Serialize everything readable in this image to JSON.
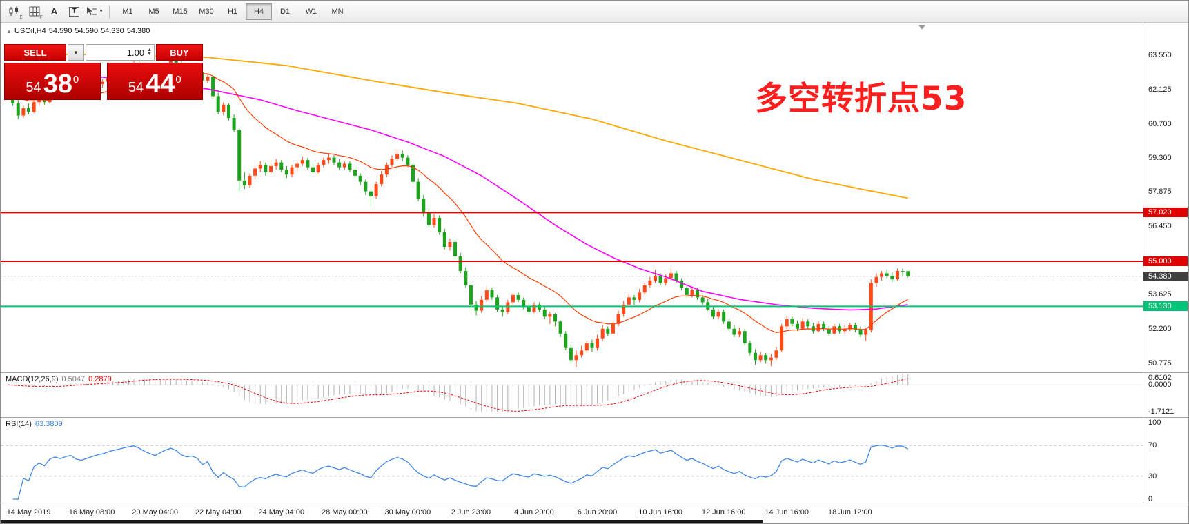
{
  "toolbar": {
    "icon_buttons": [
      {
        "name": "chart-type",
        "icon": "candles",
        "sub": "E"
      },
      {
        "name": "grid-toggle",
        "icon": "grid",
        "sub": "F"
      },
      {
        "name": "label-tool",
        "icon": "A",
        "sub": ""
      },
      {
        "name": "text-tool",
        "icon": "T",
        "sub": ""
      },
      {
        "name": "draw-tool",
        "icon": "cursor",
        "sub": ""
      }
    ],
    "timeframes": [
      "M1",
      "M5",
      "M15",
      "M30",
      "H1",
      "H4",
      "D1",
      "W1",
      "MN"
    ],
    "active_timeframe": "H4"
  },
  "chart_header": {
    "collapse_icon": "▲",
    "symbol": "USOil,H4",
    "open": "54.590",
    "high": "54.590",
    "low": "54.330",
    "close": "54.380"
  },
  "trade_panel": {
    "sell_label": "SELL",
    "buy_label": "BUY",
    "volume": "1.00",
    "sell_price": {
      "whole": "54",
      "pips": "38",
      "sup": "0"
    },
    "buy_price": {
      "whole": "54",
      "pips": "44",
      "sup": "0"
    }
  },
  "annotation": {
    "text": "多空转折点53",
    "color": "#ff1e1e"
  },
  "price_axis": {
    "ticks": [
      {
        "text": "63.550",
        "value": 63.55
      },
      {
        "text": "62.125",
        "value": 62.125
      },
      {
        "text": "60.700",
        "value": 60.7
      },
      {
        "text": "59.300",
        "value": 59.3
      },
      {
        "text": "57.875",
        "value": 57.875
      },
      {
        "text": "56.450",
        "value": 56.45
      },
      {
        "text": "53.625",
        "value": 53.625
      },
      {
        "text": "52.200",
        "value": 52.2
      },
      {
        "text": "50.775",
        "value": 50.775
      }
    ],
    "badges": [
      {
        "text": "57.020",
        "value": 57.02,
        "bg": "#e00000",
        "fg": "#ffffff"
      },
      {
        "text": "55.000",
        "value": 55.0,
        "bg": "#e00000",
        "fg": "#ffffff"
      },
      {
        "text": "54.380",
        "value": 54.38,
        "bg": "#3f3f3f",
        "fg": "#ffffff"
      },
      {
        "text": "53.130",
        "value": 53.13,
        "bg": "#00c478",
        "fg": "#ffffff"
      }
    ]
  },
  "macd_panel": {
    "label": "MACD(12,26,9)",
    "value": "0.5047",
    "signal_value": "0.2879",
    "axis_labels": [
      "0.6102",
      "0.0000",
      "-1.7121"
    ]
  },
  "rsi_panel": {
    "label": "RSI(14)",
    "value": "63.3809",
    "axis_labels": [
      "100",
      "70",
      "30",
      "0"
    ]
  },
  "time_axis": {
    "items": [
      {
        "label": "14 May 2019",
        "bar": 4
      },
      {
        "label": "16 May 08:00",
        "bar": 16
      },
      {
        "label": "20 May 04:00",
        "bar": 28
      },
      {
        "label": "22 May 04:00",
        "bar": 40
      },
      {
        "label": "24 May 04:00",
        "bar": 52
      },
      {
        "label": "28 May 00:00",
        "bar": 64
      },
      {
        "label": "30 May 00:00",
        "bar": 76
      },
      {
        "label": "2 Jun 23:00",
        "bar": 88
      },
      {
        "label": "4 Jun 20:00",
        "bar": 100
      },
      {
        "label": "6 Jun 20:00",
        "bar": 112
      },
      {
        "label": "10 Jun 16:00",
        "bar": 124
      },
      {
        "label": "12 Jun 16:00",
        "bar": 136
      },
      {
        "label": "14 Jun 16:00",
        "bar": 148
      },
      {
        "label": "18 Jun 12:00",
        "bar": 160
      }
    ]
  },
  "chart_data": {
    "type": "candlestick",
    "title": "USOil H4 with MACD(12,26,9) and RSI(14)",
    "symbol": "USOil",
    "timeframe": "H4",
    "up_color": "#ff4a19",
    "down_color": "#1ea31e",
    "y_range": [
      50.39,
      64.87
    ],
    "hlines": [
      {
        "price": 57.02,
        "color": "#e00000",
        "width": 2
      },
      {
        "price": 55.0,
        "color": "#e00000",
        "width": 2
      },
      {
        "price": 53.13,
        "color": "#00c478",
        "width": 2
      },
      {
        "price": 54.38,
        "color": "#aaaaaa",
        "width": 1,
        "dash": true
      }
    ],
    "candles": [
      [
        61.95,
        62.2,
        61.75,
        61.85
      ],
      [
        61.85,
        62.0,
        61.45,
        61.55
      ],
      [
        61.55,
        61.7,
        60.9,
        61.05
      ],
      [
        61.05,
        61.45,
        60.95,
        61.35
      ],
      [
        61.35,
        61.55,
        61.1,
        61.2
      ],
      [
        61.2,
        61.7,
        61.15,
        61.6
      ],
      [
        61.6,
        61.85,
        61.45,
        61.75
      ],
      [
        61.75,
        61.9,
        61.5,
        61.6
      ],
      [
        61.6,
        62.05,
        61.55,
        61.95
      ],
      [
        61.95,
        62.2,
        61.8,
        62.1
      ],
      [
        62.1,
        62.25,
        61.9,
        62.0
      ],
      [
        62.0,
        62.2,
        61.85,
        62.15
      ],
      [
        62.15,
        62.35,
        62.0,
        62.25
      ],
      [
        62.25,
        62.3,
        61.9,
        62.0
      ],
      [
        62.0,
        62.15,
        61.8,
        61.9
      ],
      [
        61.9,
        62.1,
        61.75,
        62.05
      ],
      [
        62.05,
        62.3,
        61.95,
        62.2
      ],
      [
        62.2,
        62.45,
        62.1,
        62.35
      ],
      [
        62.35,
        62.55,
        62.2,
        62.45
      ],
      [
        62.45,
        62.7,
        62.35,
        62.6
      ],
      [
        62.6,
        62.85,
        62.5,
        62.75
      ],
      [
        62.75,
        62.95,
        62.6,
        62.85
      ],
      [
        62.85,
        63.1,
        62.75,
        63.0
      ],
      [
        63.0,
        63.2,
        62.85,
        63.1
      ],
      [
        63.1,
        63.3,
        62.95,
        63.2
      ],
      [
        63.2,
        63.35,
        63.0,
        63.1
      ],
      [
        63.1,
        63.25,
        62.85,
        62.95
      ],
      [
        62.95,
        63.1,
        62.75,
        62.85
      ],
      [
        62.85,
        63.0,
        62.65,
        62.75
      ],
      [
        62.75,
        63.05,
        62.7,
        62.95
      ],
      [
        62.95,
        63.25,
        62.85,
        63.15
      ],
      [
        63.15,
        63.4,
        63.05,
        63.3
      ],
      [
        63.3,
        63.45,
        63.1,
        63.2
      ],
      [
        63.2,
        63.3,
        62.9,
        63.0
      ],
      [
        63.0,
        63.15,
        62.8,
        62.9
      ],
      [
        62.9,
        63.05,
        62.7,
        62.95
      ],
      [
        62.95,
        63.1,
        62.75,
        62.85
      ],
      [
        62.85,
        62.95,
        62.4,
        62.5
      ],
      [
        62.5,
        62.75,
        62.4,
        62.65
      ],
      [
        62.65,
        62.7,
        61.75,
        61.85
      ],
      [
        61.85,
        62.0,
        61.1,
        61.2
      ],
      [
        61.2,
        61.6,
        61.05,
        61.5
      ],
      [
        61.5,
        61.55,
        60.85,
        60.95
      ],
      [
        60.95,
        61.1,
        60.35,
        60.45
      ],
      [
        60.45,
        60.55,
        57.9,
        58.35
      ],
      [
        58.35,
        58.7,
        58.0,
        58.15
      ],
      [
        58.15,
        58.65,
        58.05,
        58.55
      ],
      [
        58.55,
        58.95,
        58.4,
        58.85
      ],
      [
        58.85,
        59.15,
        58.7,
        59.0
      ],
      [
        59.0,
        59.1,
        58.55,
        58.7
      ],
      [
        58.7,
        59.05,
        58.6,
        58.95
      ],
      [
        58.95,
        59.25,
        58.8,
        59.1
      ],
      [
        59.1,
        59.2,
        58.7,
        58.8
      ],
      [
        58.8,
        58.95,
        58.45,
        58.6
      ],
      [
        58.6,
        59.0,
        58.5,
        58.9
      ],
      [
        58.9,
        59.15,
        58.75,
        59.05
      ],
      [
        59.05,
        59.35,
        58.95,
        59.2
      ],
      [
        59.2,
        59.3,
        58.8,
        58.9
      ],
      [
        58.9,
        59.05,
        58.6,
        58.7
      ],
      [
        58.7,
        59.1,
        58.65,
        59.0
      ],
      [
        59.0,
        59.3,
        58.9,
        59.2
      ],
      [
        59.2,
        59.45,
        59.05,
        59.3
      ],
      [
        59.3,
        59.4,
        59.0,
        59.1
      ],
      [
        59.1,
        59.25,
        58.8,
        58.9
      ],
      [
        58.9,
        59.15,
        58.8,
        59.05
      ],
      [
        59.05,
        59.15,
        58.7,
        58.8
      ],
      [
        58.8,
        58.9,
        58.45,
        58.55
      ],
      [
        58.55,
        58.65,
        58.15,
        58.3
      ],
      [
        58.3,
        58.4,
        57.75,
        57.9
      ],
      [
        57.9,
        58.0,
        57.3,
        57.7
      ],
      [
        57.7,
        58.3,
        57.6,
        58.2
      ],
      [
        58.2,
        58.75,
        58.1,
        58.6
      ],
      [
        58.6,
        59.1,
        58.5,
        59.0
      ],
      [
        59.0,
        59.4,
        58.9,
        59.25
      ],
      [
        59.25,
        59.65,
        59.15,
        59.45
      ],
      [
        59.45,
        59.6,
        59.15,
        59.3
      ],
      [
        59.3,
        59.4,
        58.9,
        59.0
      ],
      [
        59.0,
        59.1,
        58.2,
        58.3
      ],
      [
        58.3,
        58.45,
        57.5,
        57.6
      ],
      [
        57.6,
        57.75,
        56.85,
        57.0
      ],
      [
        57.0,
        57.2,
        56.4,
        56.5
      ],
      [
        56.5,
        56.95,
        56.4,
        56.8
      ],
      [
        56.8,
        56.9,
        56.1,
        56.2
      ],
      [
        56.2,
        56.35,
        55.5,
        55.6
      ],
      [
        55.6,
        55.95,
        55.45,
        55.8
      ],
      [
        55.8,
        55.9,
        55.1,
        55.2
      ],
      [
        55.2,
        55.35,
        54.5,
        54.6
      ],
      [
        54.6,
        54.75,
        53.9,
        54.0
      ],
      [
        54.0,
        54.1,
        52.95,
        53.2
      ],
      [
        53.2,
        53.35,
        52.75,
        52.95
      ],
      [
        52.95,
        53.55,
        52.85,
        53.4
      ],
      [
        53.4,
        53.95,
        53.3,
        53.8
      ],
      [
        53.8,
        53.9,
        53.4,
        53.5
      ],
      [
        53.5,
        53.6,
        52.9,
        53.0
      ],
      [
        53.0,
        53.15,
        52.7,
        52.9
      ],
      [
        52.9,
        53.4,
        52.8,
        53.3
      ],
      [
        53.3,
        53.7,
        53.2,
        53.6
      ],
      [
        53.6,
        53.7,
        53.3,
        53.4
      ],
      [
        53.4,
        53.5,
        53.0,
        53.1
      ],
      [
        53.1,
        53.25,
        52.8,
        52.9
      ],
      [
        52.9,
        53.3,
        52.85,
        53.2
      ],
      [
        53.2,
        53.3,
        52.9,
        53.0
      ],
      [
        53.0,
        53.1,
        52.6,
        52.7
      ],
      [
        52.7,
        52.9,
        52.4,
        52.8
      ],
      [
        52.8,
        52.85,
        52.3,
        52.5
      ],
      [
        52.5,
        52.55,
        51.85,
        52.0
      ],
      [
        52.0,
        52.1,
        51.3,
        51.4
      ],
      [
        51.4,
        51.55,
        50.75,
        50.9
      ],
      [
        50.9,
        51.3,
        50.6,
        51.1
      ],
      [
        51.1,
        51.5,
        51.0,
        51.3
      ],
      [
        51.3,
        51.7,
        51.2,
        51.6
      ],
      [
        51.6,
        51.75,
        51.25,
        51.4
      ],
      [
        51.4,
        51.95,
        51.3,
        51.8
      ],
      [
        51.8,
        52.35,
        51.7,
        52.2
      ],
      [
        52.2,
        52.3,
        51.9,
        52.0
      ],
      [
        52.0,
        52.55,
        51.95,
        52.4
      ],
      [
        52.4,
        52.95,
        52.3,
        52.8
      ],
      [
        52.8,
        53.35,
        52.7,
        53.2
      ],
      [
        53.2,
        53.65,
        53.1,
        53.5
      ],
      [
        53.5,
        53.6,
        53.2,
        53.4
      ],
      [
        53.4,
        53.85,
        53.3,
        53.7
      ],
      [
        53.7,
        54.1,
        53.6,
        54.0
      ],
      [
        54.0,
        54.35,
        53.9,
        54.2
      ],
      [
        54.2,
        54.65,
        54.1,
        54.4
      ],
      [
        54.4,
        54.5,
        54.0,
        54.1
      ],
      [
        54.1,
        54.45,
        54.0,
        54.3
      ],
      [
        54.3,
        54.7,
        54.2,
        54.5
      ],
      [
        54.5,
        54.6,
        54.1,
        54.2
      ],
      [
        54.2,
        54.3,
        53.8,
        53.9
      ],
      [
        53.9,
        54.0,
        53.5,
        53.6
      ],
      [
        53.6,
        53.95,
        53.5,
        53.8
      ],
      [
        53.8,
        53.9,
        53.4,
        53.5
      ],
      [
        53.5,
        53.6,
        53.2,
        53.3
      ],
      [
        53.3,
        53.45,
        52.95,
        53.0
      ],
      [
        53.0,
        53.1,
        52.6,
        52.7
      ],
      [
        52.7,
        53.0,
        52.6,
        52.9
      ],
      [
        52.9,
        53.0,
        52.4,
        52.5
      ],
      [
        52.5,
        52.6,
        52.1,
        52.2
      ],
      [
        52.2,
        52.35,
        51.85,
        51.95
      ],
      [
        51.95,
        52.25,
        51.85,
        52.1
      ],
      [
        52.1,
        52.2,
        51.5,
        51.6
      ],
      [
        51.6,
        51.7,
        51.1,
        51.2
      ],
      [
        51.2,
        51.35,
        50.7,
        50.9
      ],
      [
        50.9,
        51.25,
        50.8,
        51.1
      ],
      [
        51.1,
        51.2,
        50.75,
        50.9
      ],
      [
        50.9,
        51.15,
        50.65,
        51.0
      ],
      [
        51.0,
        51.45,
        50.9,
        51.3
      ],
      [
        51.3,
        52.4,
        51.25,
        52.3
      ],
      [
        52.3,
        52.75,
        52.2,
        52.6
      ],
      [
        52.6,
        52.7,
        52.3,
        52.4
      ],
      [
        52.4,
        52.55,
        52.1,
        52.2
      ],
      [
        52.2,
        52.65,
        52.15,
        52.5
      ],
      [
        52.5,
        52.6,
        52.2,
        52.3
      ],
      [
        52.3,
        52.45,
        52.0,
        52.1
      ],
      [
        52.1,
        52.5,
        52.05,
        52.4
      ],
      [
        52.4,
        52.5,
        52.1,
        52.2
      ],
      [
        52.2,
        52.3,
        51.9,
        52.0
      ],
      [
        52.0,
        52.4,
        51.95,
        52.3
      ],
      [
        52.3,
        52.4,
        52.0,
        52.1
      ],
      [
        52.1,
        52.35,
        52.0,
        52.2
      ],
      [
        52.2,
        52.45,
        52.1,
        52.35
      ],
      [
        52.35,
        52.45,
        52.05,
        52.15
      ],
      [
        52.15,
        52.3,
        51.85,
        51.95
      ],
      [
        51.95,
        52.25,
        51.7,
        52.15
      ],
      [
        52.15,
        54.25,
        52.05,
        54.1
      ],
      [
        54.1,
        54.5,
        53.95,
        54.35
      ],
      [
        54.35,
        54.6,
        54.2,
        54.5
      ],
      [
        54.5,
        54.65,
        54.3,
        54.4
      ],
      [
        54.4,
        54.55,
        54.15,
        54.25
      ],
      [
        54.25,
        54.7,
        54.2,
        54.6
      ],
      [
        54.6,
        54.7,
        54.4,
        54.59
      ],
      [
        54.59,
        54.59,
        54.33,
        54.38
      ]
    ],
    "ma_lines": [
      {
        "name": "ma-slow",
        "color": "#ffa800",
        "width": 1.8,
        "anchors": [
          [
            0,
            63.62
          ],
          [
            19,
            63.56
          ],
          [
            38,
            63.46
          ],
          [
            53,
            63.12
          ],
          [
            69,
            62.5
          ],
          [
            83,
            62.0
          ],
          [
            97,
            61.55
          ],
          [
            111,
            60.9
          ],
          [
            125,
            60.0
          ],
          [
            139,
            59.2
          ],
          [
            153,
            58.4
          ],
          [
            162,
            58.0
          ],
          [
            171,
            57.62
          ]
        ]
      },
      {
        "name": "ma-medium",
        "color": "#ff00ff",
        "width": 1.6,
        "anchors": [
          [
            0,
            63.0
          ],
          [
            20,
            62.6
          ],
          [
            38,
            62.15
          ],
          [
            48,
            61.7
          ],
          [
            55,
            61.25
          ],
          [
            62,
            60.85
          ],
          [
            69,
            60.45
          ],
          [
            76,
            59.95
          ],
          [
            83,
            59.35
          ],
          [
            90,
            58.55
          ],
          [
            97,
            57.55
          ],
          [
            104,
            56.5
          ],
          [
            110,
            55.7
          ],
          [
            115,
            55.15
          ],
          [
            120,
            54.7
          ],
          [
            125,
            54.35
          ],
          [
            132,
            53.75
          ],
          [
            139,
            53.42
          ],
          [
            146,
            53.2
          ],
          [
            153,
            53.05
          ],
          [
            160,
            52.98
          ],
          [
            165,
            53.02
          ],
          [
            171,
            53.2
          ]
        ]
      },
      {
        "name": "ma-fast",
        "color": "#ff3d00",
        "width": 1.2,
        "ema_period": 20
      }
    ],
    "macd": {
      "fast": 12,
      "slow": 26,
      "signal": 9,
      "y_range": [
        -1.7121,
        0.6102
      ],
      "hist_color": "#b3b3b3",
      "signal_color": "#f00000"
    },
    "rsi": {
      "period": 14,
      "levels": [
        70,
        30
      ],
      "y_range": [
        0,
        100
      ],
      "color": "#3e86e8"
    }
  }
}
